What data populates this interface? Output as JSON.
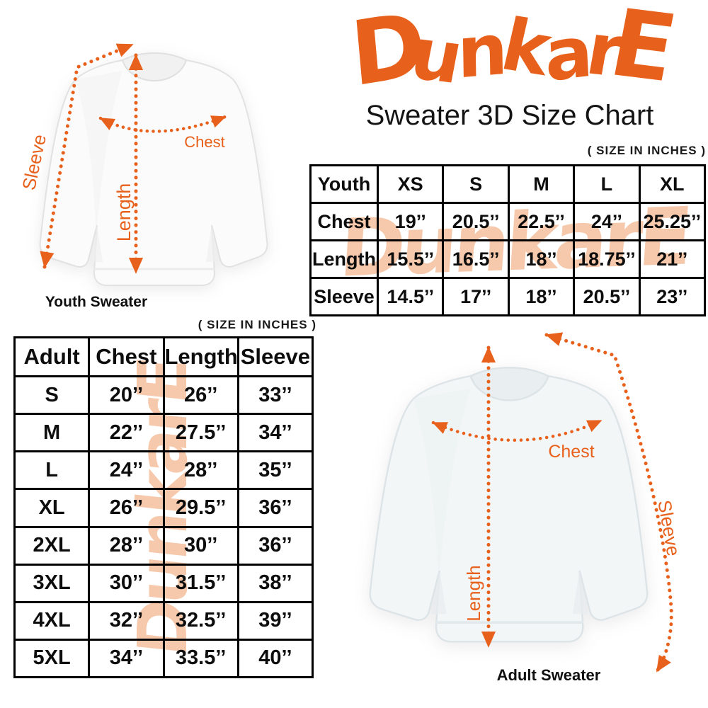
{
  "brand": {
    "logo_text": "DunkarE",
    "logo_color": "#E8611C"
  },
  "header": {
    "title": "Sweater 3D Size Chart"
  },
  "watermark": {
    "text": "DunkarE",
    "color": "#F6C9AC"
  },
  "youth_section": {
    "size_note": "( SIZE IN INCHES )",
    "diagram": {
      "caption": "Youth Sweater",
      "chest_label": "Chest",
      "length_label": "Length",
      "sleeve_label": "Sleeve"
    },
    "table": {
      "header": [
        "Youth",
        "XS",
        "S",
        "M",
        "L",
        "XL"
      ],
      "rows": [
        {
          "label": "Chest",
          "values": [
            "19’’",
            "20.5’’",
            "22.5’’",
            "24’’",
            "25.25’’"
          ]
        },
        {
          "label": "Length",
          "values": [
            "15.5’’",
            "16.5’’",
            "18’’",
            "18.75’’",
            "21’’"
          ]
        },
        {
          "label": "Sleeve",
          "values": [
            "14.5’’",
            "17’’",
            "18’’",
            "20.5’’",
            "23’’"
          ]
        }
      ]
    }
  },
  "adult_section": {
    "size_note": "( SIZE IN INCHES )",
    "diagram": {
      "caption": "Adult Sweater",
      "chest_label": "Chest",
      "length_label": "Length",
      "sleeve_label": "Sleeve"
    },
    "table": {
      "header": [
        "Adult",
        "Chest",
        "Length",
        "Sleeve"
      ],
      "rows": [
        {
          "label": "S",
          "values": [
            "20’’",
            "26’’",
            "33’’"
          ]
        },
        {
          "label": "M",
          "values": [
            "22’’",
            "27.5’’",
            "34’’"
          ]
        },
        {
          "label": "L",
          "values": [
            "24’’",
            "28’’",
            "35’’"
          ]
        },
        {
          "label": "XL",
          "values": [
            "26’’",
            "29.5’’",
            "36’’"
          ]
        },
        {
          "label": "2XL",
          "values": [
            "28’’",
            "30’’",
            "36’’"
          ]
        },
        {
          "label": "3XL",
          "values": [
            "30’’",
            "31.5’’",
            "38’’"
          ]
        },
        {
          "label": "4XL",
          "values": [
            "32’’",
            "32.5’’",
            "39’’"
          ]
        },
        {
          "label": "5XL",
          "values": [
            "34’’",
            "33.5’’",
            "40’’"
          ]
        }
      ]
    }
  },
  "chart_data": [
    {
      "type": "table",
      "title": "Youth sweater sizes (inches)",
      "columns": [
        "Youth",
        "XS",
        "S",
        "M",
        "L",
        "XL"
      ],
      "rows": [
        [
          "Chest",
          19,
          20.5,
          22.5,
          24,
          25.25
        ],
        [
          "Length",
          15.5,
          16.5,
          18,
          18.75,
          21
        ],
        [
          "Sleeve",
          14.5,
          17,
          18,
          20.5,
          23
        ]
      ]
    },
    {
      "type": "table",
      "title": "Adult sweater sizes (inches)",
      "columns": [
        "Adult",
        "Chest",
        "Length",
        "Sleeve"
      ],
      "rows": [
        [
          "S",
          20,
          26,
          33
        ],
        [
          "M",
          22,
          27.5,
          34
        ],
        [
          "L",
          24,
          28,
          35
        ],
        [
          "XL",
          26,
          29.5,
          36
        ],
        [
          "2XL",
          28,
          30,
          36
        ],
        [
          "3XL",
          30,
          31.5,
          38
        ],
        [
          "4XL",
          32,
          32.5,
          39
        ],
        [
          "5XL",
          34,
          33.5,
          40
        ]
      ]
    }
  ]
}
